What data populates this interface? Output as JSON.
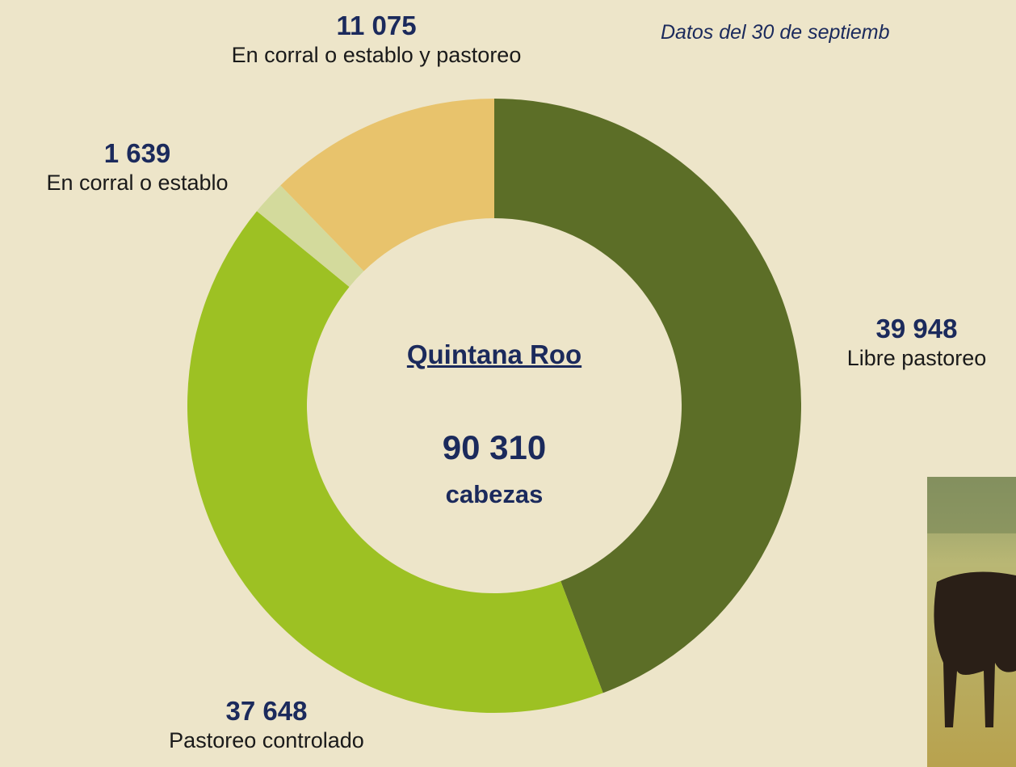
{
  "chart_data": {
    "type": "donut",
    "subtitle": "Datos del 30 de septiemb",
    "center_title": "Quintana Roo",
    "center_lines": [
      "90 310",
      "cabezas"
    ],
    "categories": [
      "Libre pastoreo",
      "Pastoreo controlado",
      "En corral o establo",
      "En corral o establo y pastoreo"
    ],
    "values": [
      39948,
      37648,
      1639,
      11075
    ],
    "value_labels": [
      "39 948",
      "37 648",
      "1 639",
      "11 075"
    ],
    "colors": [
      "#5c6e27",
      "#9dc123",
      "#d3da9c",
      "#e8c36c"
    ]
  }
}
